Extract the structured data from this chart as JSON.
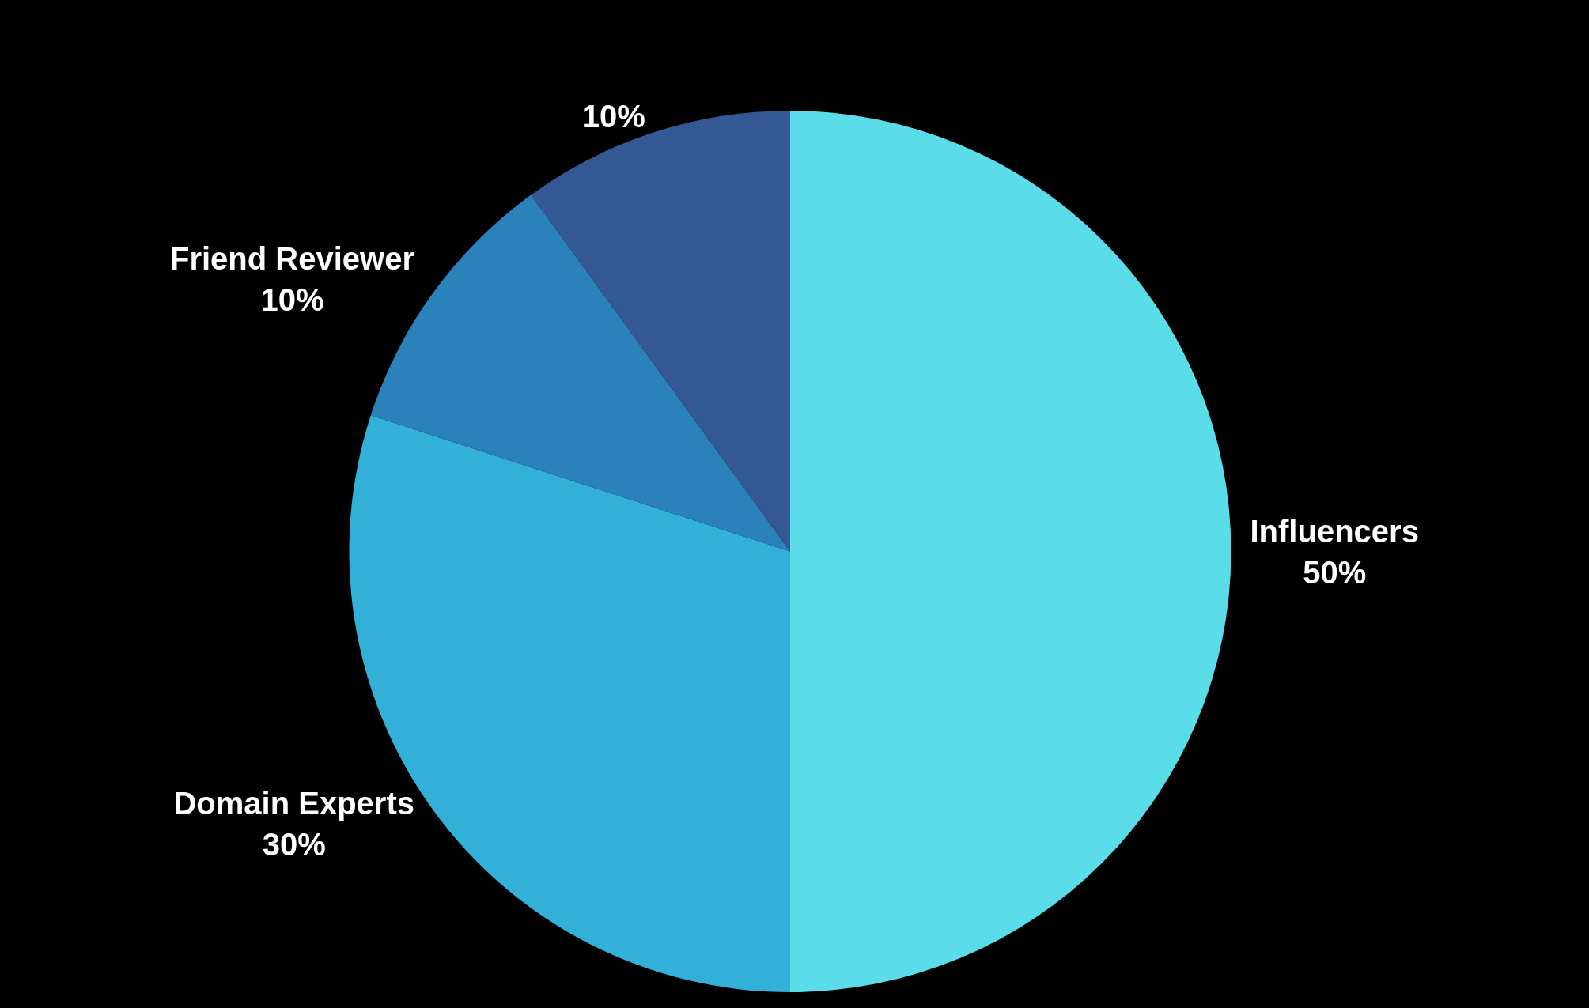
{
  "chart_data": {
    "type": "pie",
    "categories": [
      "Influencers",
      "Domain Experts",
      "Friend Reviewer",
      null
    ],
    "values": [
      50,
      30,
      10,
      10
    ],
    "value_labels": [
      "50%",
      "30%",
      "10%",
      "10%"
    ],
    "colors": [
      "#5adce9",
      "#33b0d8",
      "#2b82ba",
      "#345894"
    ],
    "legend": false
  }
}
